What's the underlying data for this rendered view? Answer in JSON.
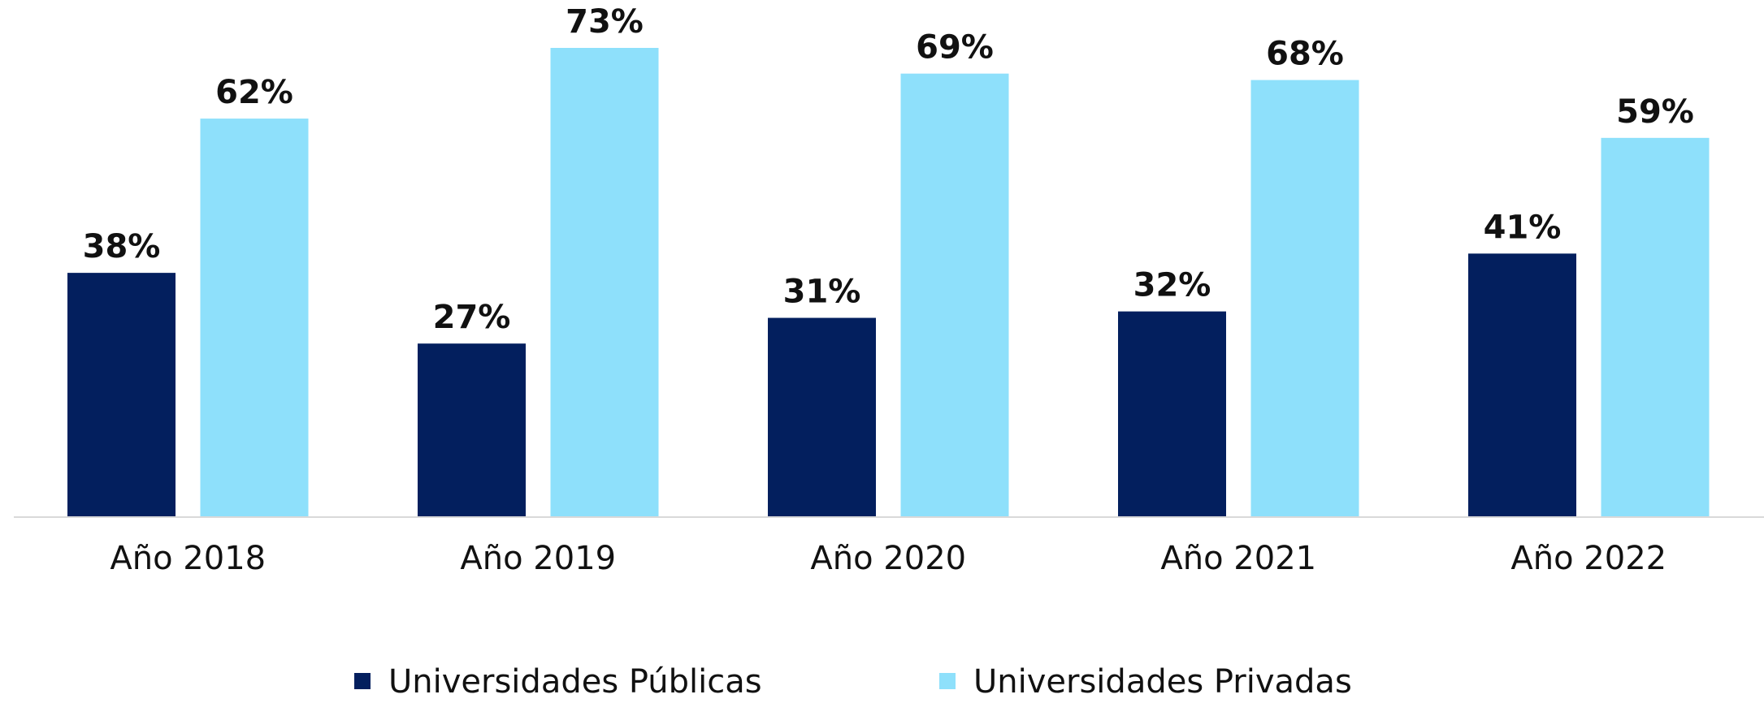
{
  "chart_data": {
    "type": "bar",
    "categories": [
      "Año 2018",
      "Año 2019",
      "Año 2020",
      "Año 2021",
      "Año 2022"
    ],
    "series": [
      {
        "name": "Universidades Públicas",
        "color": "#031f5e",
        "values": [
          38,
          27,
          31,
          32,
          41
        ],
        "value_labels": [
          "38%",
          "27%",
          "31%",
          "32%",
          "41%"
        ]
      },
      {
        "name": "Universidades Privadas",
        "color": "#8ee0fb",
        "values": [
          62,
          73,
          69,
          68,
          59
        ],
        "value_labels": [
          "62%",
          "73%",
          "69%",
          "68%",
          "59%"
        ]
      }
    ],
    "legend": "bottom"
  }
}
